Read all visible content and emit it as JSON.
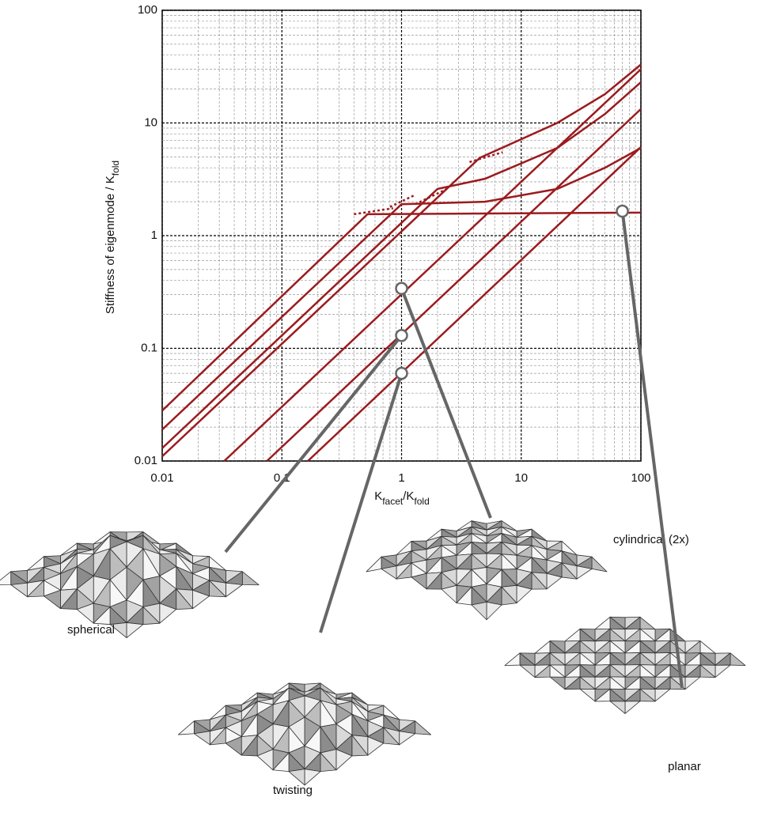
{
  "chart_data": {
    "type": "line",
    "xlabel": [
      {
        "text": "K"
      },
      {
        "text": "facet",
        "sub": true
      },
      {
        "text": "/K"
      },
      {
        "text": "fold",
        "sub": true
      }
    ],
    "ylabel": [
      {
        "text": "Stiffness of eigenmode / K"
      },
      {
        "text": "fold",
        "sub": true
      }
    ],
    "log_x": true,
    "log_y": true,
    "grid": true,
    "xlim": [
      0.01,
      100
    ],
    "ylim": [
      0.01,
      100
    ],
    "xticks": [
      0.01,
      0.1,
      1,
      10,
      100
    ],
    "yticks": [
      0.01,
      0.1,
      1,
      10,
      100
    ],
    "xminor": [
      0.02,
      0.03,
      0.04,
      0.05,
      0.06,
      0.07,
      0.08,
      0.09,
      0.2,
      0.3,
      0.4,
      0.5,
      0.6,
      0.7,
      0.8,
      0.9,
      2,
      3,
      4,
      5,
      6,
      7,
      8,
      9,
      20,
      30,
      40,
      50,
      60,
      70,
      80,
      90
    ],
    "yminor": [
      0.02,
      0.03,
      0.04,
      0.05,
      0.06,
      0.07,
      0.08,
      0.09,
      0.2,
      0.3,
      0.4,
      0.5,
      0.6,
      0.7,
      0.8,
      0.9,
      2,
      3,
      4,
      5,
      6,
      7,
      8,
      9,
      20,
      30,
      40,
      50,
      60,
      70,
      80,
      90
    ],
    "series": [
      {
        "color": "#9b1b1e",
        "x": [
          0.01,
          0.52,
          100
        ],
        "values": [
          0.028,
          1.55,
          1.6
        ]
      },
      {
        "color": "#9b1b1e",
        "x": [
          0.01,
          1,
          5,
          20,
          50,
          100
        ],
        "values": [
          0.019,
          1.9,
          2.0,
          2.6,
          4,
          6
        ]
      },
      {
        "color": "#9b1b1e",
        "x": [
          0.01,
          2,
          5,
          20,
          50,
          100
        ],
        "values": [
          0.013,
          2.6,
          3.2,
          6,
          12,
          23
        ]
      },
      {
        "color": "#9b1b1e",
        "x": [
          0.01,
          4.5,
          20,
          50,
          100
        ],
        "values": [
          0.011,
          4.9,
          10,
          18,
          33
        ]
      },
      {
        "color": "#9b1b1e",
        "x": [
          0.033,
          100
        ],
        "values": [
          0.01,
          30
        ]
      },
      {
        "color": "#9b1b1e",
        "x": [
          0.075,
          100
        ],
        "values": [
          0.01,
          13.3
        ]
      },
      {
        "color": "#9b1b1e",
        "x": [
          0.165,
          100
        ],
        "values": [
          0.01,
          6.1
        ]
      },
      {
        "color": "#9b1b1e",
        "dashed": true,
        "x": [
          0.4,
          0.85
        ],
        "values": [
          1.55,
          1.75
        ]
      },
      {
        "color": "#9b1b1e",
        "dashed": true,
        "x": [
          0.8,
          1.3
        ],
        "values": [
          1.8,
          2.3
        ]
      },
      {
        "color": "#9b1b1e",
        "dashed": true,
        "x": [
          1.3,
          2.4
        ],
        "values": [
          1.9,
          2.6
        ]
      },
      {
        "color": "#9b1b1e",
        "dashed": true,
        "x": [
          3.7,
          7
        ],
        "values": [
          4.5,
          5.5
        ]
      }
    ],
    "annotations": [
      {
        "label": "cylindrical (2x)",
        "x": 1,
        "y": 0.34
      },
      {
        "label": "spherical",
        "x": 1,
        "y": 0.13
      },
      {
        "label": "twisting",
        "x": 1,
        "y": 0.06
      },
      {
        "label": "planar",
        "x": 70,
        "y": 1.65
      }
    ]
  }
}
